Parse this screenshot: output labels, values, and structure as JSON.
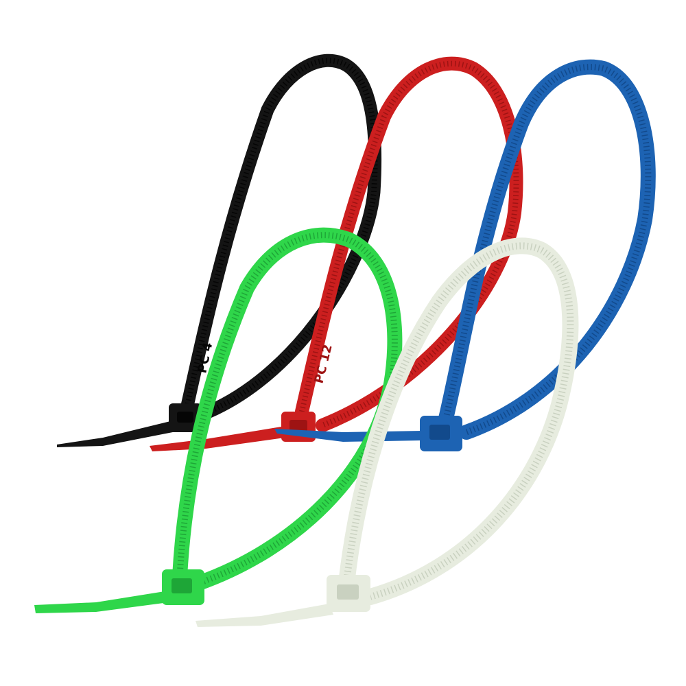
{
  "background": "#ffffff",
  "ties": [
    {
      "name": "black",
      "color": "#141414",
      "highlight": "#3a3a3a",
      "ribs": "#050505",
      "emboss": "PC 4"
    },
    {
      "name": "red",
      "color": "#cc1f1f",
      "highlight": "#e34545",
      "ribs": "#9e1313",
      "emboss": "PC 12"
    },
    {
      "name": "blue",
      "color": "#1d63b3",
      "highlight": "#3d84d1",
      "ribs": "#124a8c",
      "emboss": ""
    },
    {
      "name": "green",
      "color": "#2fd64a",
      "highlight": "#62ec76",
      "ribs": "#1ea637",
      "emboss": ""
    },
    {
      "name": "natural",
      "color": "#e7ecdf",
      "highlight": "#f6f8f1",
      "ribs": "#c9d1c0",
      "emboss": ""
    }
  ]
}
